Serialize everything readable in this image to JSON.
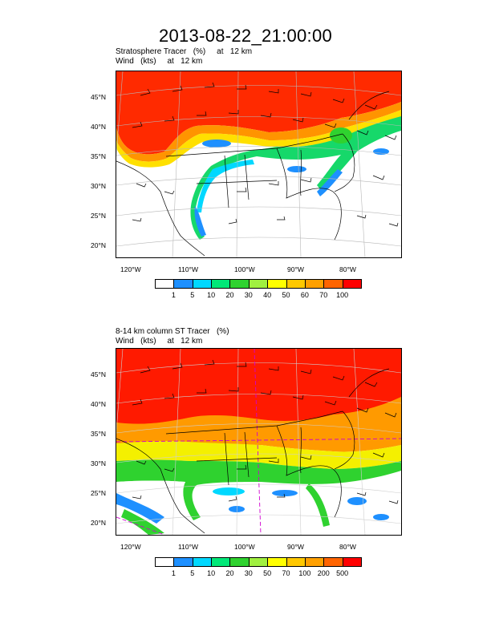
{
  "title": "2013-08-22_21:00:00",
  "panel1": {
    "line1": "Stratosphere Tracer   (%)     at   12 km",
    "line2": "Wind   (kts)     at   12 km",
    "lat_labels": [
      "45°N",
      "40°N",
      "35°N",
      "30°N",
      "25°N",
      "20°N"
    ],
    "lon_labels": [
      "120°W",
      "110°W",
      "100°W",
      "90°W",
      "80°W"
    ],
    "colorbar": {
      "labels": [
        "1",
        "5",
        "10",
        "20",
        "30",
        "40",
        "50",
        "60",
        "70",
        "100"
      ],
      "colors": [
        "#ffffff",
        "#1e90ff",
        "#00d8ff",
        "#00e878",
        "#2fd22f",
        "#a0f040",
        "#ffff00",
        "#ffc800",
        "#ffa000",
        "#ff6400",
        "#ff0000"
      ]
    }
  },
  "panel2": {
    "line1": "8-14 km column ST Tracer   (%)",
    "line2": "Wind   (kts)     at   12 km",
    "lat_labels": [
      "45°N",
      "40°N",
      "35°N",
      "30°N",
      "25°N",
      "20°N"
    ],
    "lon_labels": [
      "120°W",
      "110°W",
      "100°W",
      "90°W",
      "80°W"
    ],
    "colorbar": {
      "labels": [
        "1",
        "5",
        "10",
        "20",
        "30",
        "50",
        "70",
        "100",
        "200",
        "500"
      ],
      "colors": [
        "#ffffff",
        "#1e90ff",
        "#00d8ff",
        "#00e878",
        "#2fd22f",
        "#a0f040",
        "#ffff00",
        "#ffc800",
        "#ffa000",
        "#ff6400",
        "#ff0000"
      ]
    }
  }
}
